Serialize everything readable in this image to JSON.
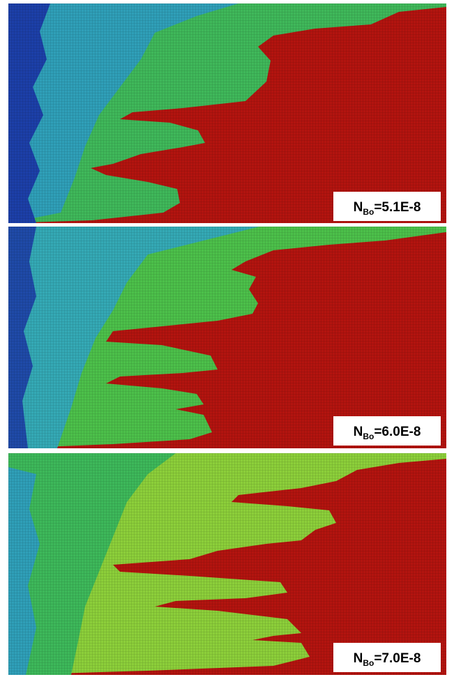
{
  "panels": [
    {
      "label": {
        "symbol": "N",
        "subscript": "Bo",
        "value": "=5.1E-8"
      }
    },
    {
      "label": {
        "symbol": "N",
        "subscript": "Bo",
        "value": "=6.0E-8"
      }
    },
    {
      "label": {
        "symbol": "N",
        "subscript": "Bo",
        "value": "=7.0E-8"
      }
    }
  ]
}
